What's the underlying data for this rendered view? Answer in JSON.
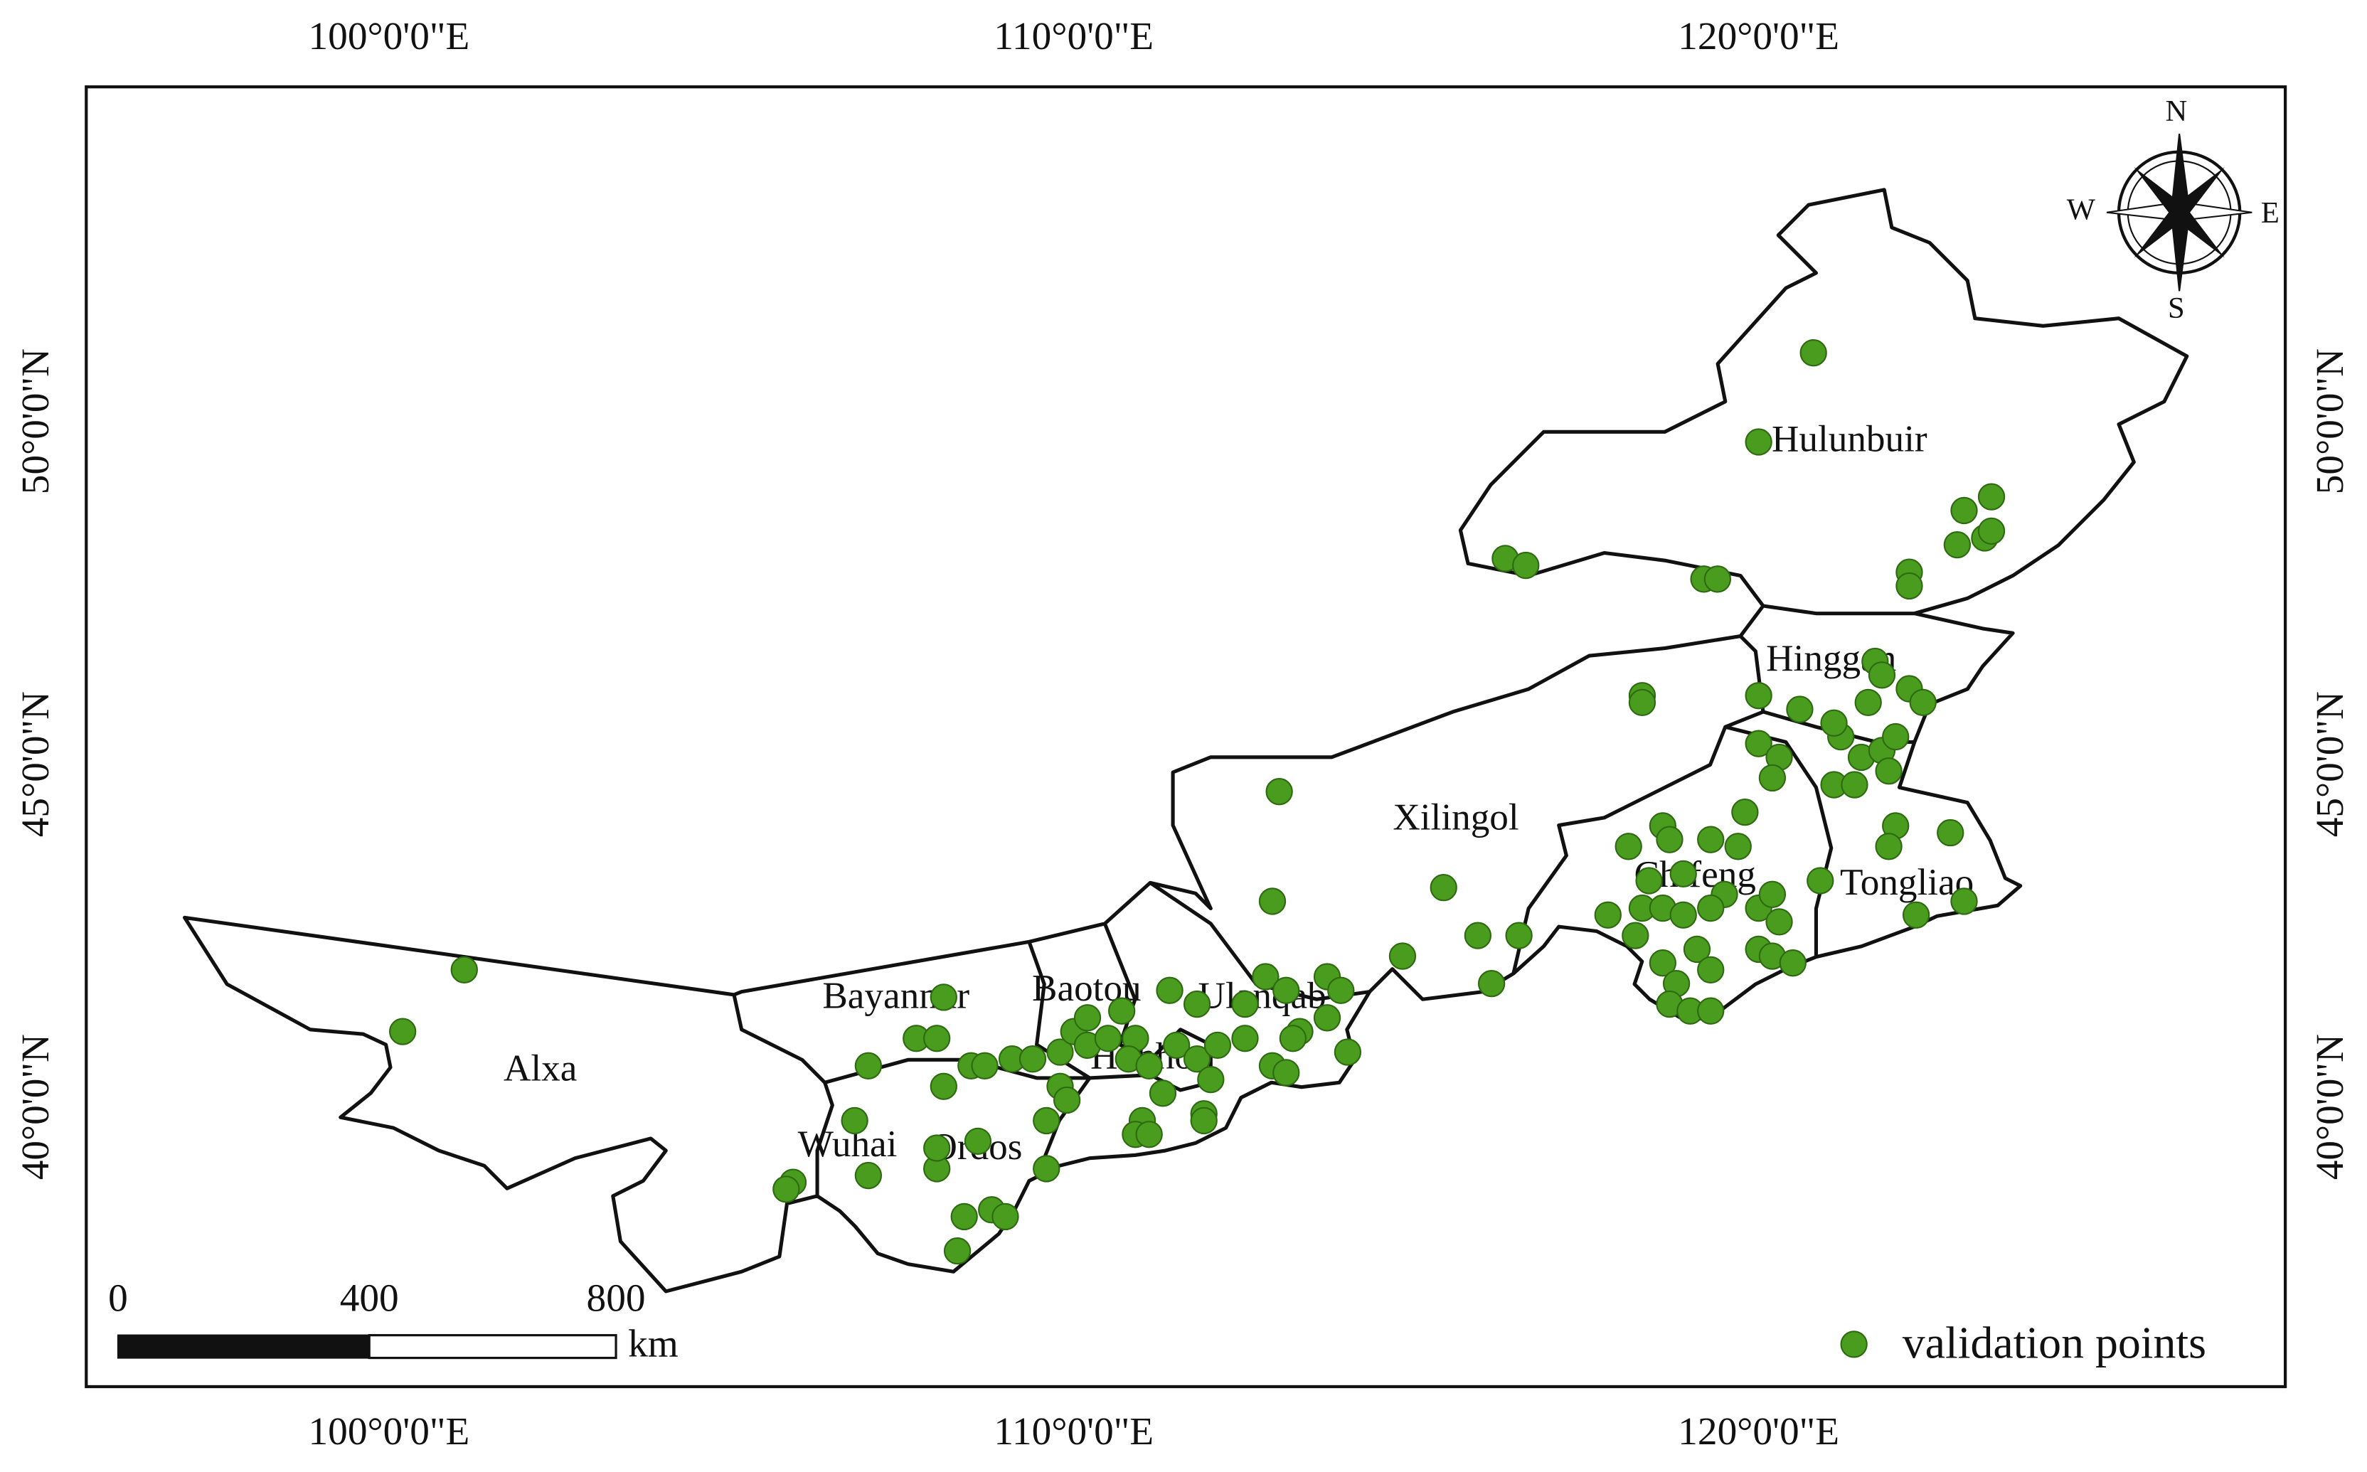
{
  "chart_data": {
    "type": "scatter",
    "xlim": [
      95.58,
      127.69
    ],
    "ylim": [
      35.92,
      54.88
    ],
    "xticks": [
      {
        "value": 100,
        "label": "100°0'0\"E"
      },
      {
        "value": 110,
        "label": "110°0'0\"E"
      },
      {
        "value": 120,
        "label": "120°0'0\"E"
      }
    ],
    "yticks": [
      {
        "value": 40,
        "label": "40°0'0\"N"
      },
      {
        "value": 45,
        "label": "45°0'0\"N"
      },
      {
        "value": 50,
        "label": "50°0'0\"N"
      }
    ],
    "regions": [
      "Alxa",
      "Bayannur",
      "Wuhai",
      "Ordos",
      "Baotou",
      "Hohhot",
      "Ulanqab",
      "Xilingol",
      "Chifeng",
      "Tongliao",
      "Hinggan",
      "Hulunbuir"
    ],
    "compass": {
      "north": "N",
      "east": "E",
      "south": "S",
      "west": "W"
    },
    "scale_bar": {
      "ticks": [
        0,
        400,
        800
      ],
      "unit": "km"
    },
    "legend": "lower right",
    "series": [
      {
        "name": "validation points",
        "color": "#4a9c1f",
        "x": [
          101.1,
          100.2,
          120.8,
          120.0,
          116.3,
          116.6,
          119.2,
          119.4,
          122.2,
          122.2,
          123.0,
          123.4,
          122.9,
          123.3,
          123.4,
          118.3,
          118.3,
          121.7,
          121.8,
          121.6,
          122.2,
          122.4,
          120.0,
          120.6,
          120.0,
          120.3,
          120.2,
          121.2,
          121.5,
          121.8,
          122.0,
          121.9,
          121.1,
          113.0,
          115.4,
          112.9,
          115.9,
          116.5,
          114.8,
          116.1,
          118.1,
          118.6,
          118.7,
          119.3,
          119.7,
          119.8,
          118.4,
          118.9,
          119.5,
          118.3,
          118.6,
          118.9,
          119.3,
          117.8,
          118.2,
          118.6,
          119.1,
          119.3,
          118.8,
          118.7,
          119.0,
          119.3,
          120.0,
          120.2,
          120.0,
          120.2,
          120.5,
          120.3,
          120.9,
          122.0,
          121.9,
          122.8,
          123.0,
          122.3,
          108.1,
          107.7,
          108.0,
          107.0,
          108.5,
          108.1,
          108.7,
          109.1,
          109.4,
          109.8,
          110.0,
          110.2,
          110.2,
          110.5,
          110.7,
          110.9,
          110.8,
          111.1,
          109.8,
          109.9,
          111.3,
          111.5,
          111.4,
          111.8,
          111.8,
          112.0,
          112.1,
          112.5,
          112.5,
          112.8,
          113.1,
          113.3,
          113.2,
          112.9,
          113.1,
          113.7,
          113.9,
          113.7,
          114.0,
          111.9,
          111.9,
          111.0,
          110.9,
          111.1,
          109.6,
          109.6,
          108.6,
          108.0,
          108.0,
          107.0,
          106.8,
          105.9,
          105.8,
          108.4,
          108.8,
          109.0,
          108.3,
          121.1,
          121.4
        ],
        "y": [
          42.0,
          41.1,
          51.0,
          49.7,
          48.0,
          47.9,
          47.7,
          47.7,
          47.8,
          47.6,
          48.7,
          48.9,
          48.2,
          48.3,
          48.4,
          46.0,
          45.9,
          46.5,
          46.3,
          45.9,
          46.1,
          45.9,
          46.0,
          45.8,
          45.3,
          45.1,
          44.8,
          45.4,
          45.1,
          45.2,
          45.4,
          44.9,
          44.7,
          44.6,
          43.2,
          43.0,
          42.5,
          42.5,
          42.2,
          41.8,
          43.8,
          44.1,
          43.9,
          43.9,
          43.8,
          44.3,
          43.3,
          43.4,
          43.1,
          42.9,
          42.9,
          42.8,
          42.9,
          42.8,
          42.5,
          42.1,
          42.3,
          42.0,
          41.8,
          41.5,
          41.4,
          41.4,
          42.9,
          43.1,
          42.3,
          42.2,
          42.1,
          42.7,
          43.3,
          44.1,
          43.8,
          44.0,
          43.0,
          42.8,
          41.6,
          41.0,
          41.0,
          40.6,
          40.6,
          40.3,
          40.6,
          40.7,
          40.7,
          40.8,
          41.1,
          41.3,
          40.9,
          41.0,
          41.4,
          41.0,
          40.7,
          40.6,
          40.3,
          40.1,
          40.2,
          40.9,
          41.7,
          41.5,
          40.7,
          40.4,
          40.9,
          41.0,
          41.5,
          41.9,
          41.7,
          41.1,
          41.0,
          40.6,
          40.5,
          41.9,
          41.7,
          41.3,
          40.8,
          39.9,
          39.8,
          39.8,
          39.6,
          39.6,
          39.8,
          39.1,
          39.5,
          39.1,
          39.4,
          39.0,
          39.8,
          38.9,
          38.8,
          38.4,
          38.5,
          38.4,
          37.9,
          45.6,
          44.7
        ]
      }
    ]
  }
}
